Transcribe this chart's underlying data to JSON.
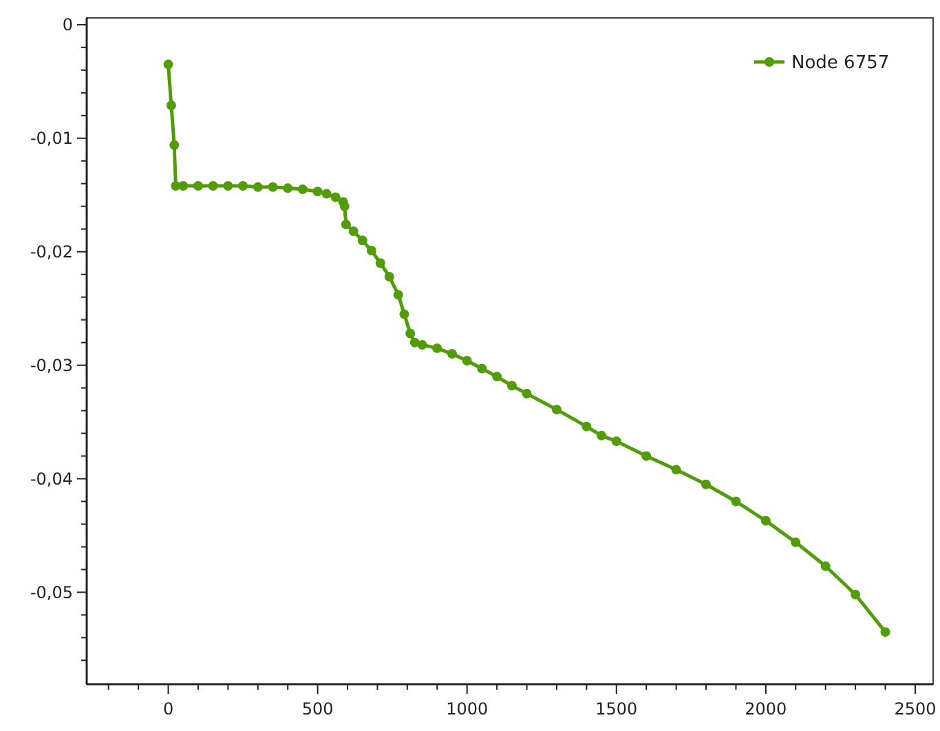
{
  "chart_data": {
    "type": "line",
    "xlim": [
      -273,
      2560
    ],
    "ylim": [
      -0.0581,
      0.0006
    ],
    "xticks": [
      {
        "value": -200,
        "label": null
      },
      {
        "value": -100,
        "label": null
      },
      {
        "value": 0,
        "label": "0"
      },
      {
        "value": 100,
        "label": null
      },
      {
        "value": 200,
        "label": null
      },
      {
        "value": 300,
        "label": null
      },
      {
        "value": 400,
        "label": null
      },
      {
        "value": 500,
        "label": "500"
      },
      {
        "value": 600,
        "label": null
      },
      {
        "value": 700,
        "label": null
      },
      {
        "value": 800,
        "label": null
      },
      {
        "value": 900,
        "label": null
      },
      {
        "value": 1000,
        "label": "1000"
      },
      {
        "value": 1100,
        "label": null
      },
      {
        "value": 1200,
        "label": null
      },
      {
        "value": 1300,
        "label": null
      },
      {
        "value": 1400,
        "label": null
      },
      {
        "value": 1500,
        "label": "1500"
      },
      {
        "value": 1600,
        "label": null
      },
      {
        "value": 1700,
        "label": null
      },
      {
        "value": 1800,
        "label": null
      },
      {
        "value": 1900,
        "label": null
      },
      {
        "value": 2000,
        "label": "2000"
      },
      {
        "value": 2100,
        "label": null
      },
      {
        "value": 2200,
        "label": null
      },
      {
        "value": 2300,
        "label": null
      },
      {
        "value": 2400,
        "label": null
      },
      {
        "value": 2500,
        "label": "2500"
      }
    ],
    "yticks": [
      {
        "value": 0,
        "label": "0"
      },
      {
        "value": -0.002,
        "label": null
      },
      {
        "value": -0.004,
        "label": null
      },
      {
        "value": -0.006,
        "label": null
      },
      {
        "value": -0.008,
        "label": null
      },
      {
        "value": -0.01,
        "label": "-0,01"
      },
      {
        "value": -0.012,
        "label": null
      },
      {
        "value": -0.014,
        "label": null
      },
      {
        "value": -0.016,
        "label": null
      },
      {
        "value": -0.018,
        "label": null
      },
      {
        "value": -0.02,
        "label": "-0,02"
      },
      {
        "value": -0.022,
        "label": null
      },
      {
        "value": -0.024,
        "label": null
      },
      {
        "value": -0.026,
        "label": null
      },
      {
        "value": -0.028,
        "label": null
      },
      {
        "value": -0.03,
        "label": "-0,03"
      },
      {
        "value": -0.032,
        "label": null
      },
      {
        "value": -0.034,
        "label": null
      },
      {
        "value": -0.036,
        "label": null
      },
      {
        "value": -0.038,
        "label": null
      },
      {
        "value": -0.04,
        "label": "-0,04"
      },
      {
        "value": -0.042,
        "label": null
      },
      {
        "value": -0.044,
        "label": null
      },
      {
        "value": -0.046,
        "label": null
      },
      {
        "value": -0.048,
        "label": null
      },
      {
        "value": -0.05,
        "label": "-0,05"
      },
      {
        "value": -0.052,
        "label": null
      },
      {
        "value": -0.054,
        "label": null
      },
      {
        "value": -0.056,
        "label": null
      }
    ],
    "grid": false,
    "legend": "top right",
    "marker": "circle",
    "line_style": "solid",
    "series": [
      {
        "name": "Node 6757",
        "color": "#519c08",
        "x": [
          0,
          10,
          20,
          25,
          50,
          100,
          150,
          200,
          250,
          300,
          350,
          400,
          450,
          500,
          530,
          560,
          585,
          590,
          595,
          620,
          650,
          680,
          710,
          740,
          770,
          790,
          810,
          825,
          850,
          900,
          950,
          1000,
          1050,
          1100,
          1150,
          1200,
          1300,
          1400,
          1450,
          1500,
          1600,
          1700,
          1800,
          1900,
          2000,
          2100,
          2200,
          2300,
          2400
        ],
        "values": [
          -0.0035,
          -0.0071,
          -0.0106,
          -0.0142,
          -0.0142,
          -0.0142,
          -0.0142,
          -0.0142,
          -0.0142,
          -0.0143,
          -0.0143,
          -0.0144,
          -0.0145,
          -0.0147,
          -0.0149,
          -0.0152,
          -0.0156,
          -0.016,
          -0.0176,
          -0.0182,
          -0.019,
          -0.0199,
          -0.021,
          -0.0222,
          -0.0238,
          -0.0255,
          -0.0272,
          -0.028,
          -0.0282,
          -0.0285,
          -0.029,
          -0.0296,
          -0.0303,
          -0.031,
          -0.0318,
          -0.0325,
          -0.0339,
          -0.0354,
          -0.0362,
          -0.0367,
          -0.038,
          -0.0392,
          -0.0405,
          -0.042,
          -0.0437,
          -0.0456,
          -0.0477,
          -0.0502,
          -0.0535
        ]
      }
    ]
  }
}
